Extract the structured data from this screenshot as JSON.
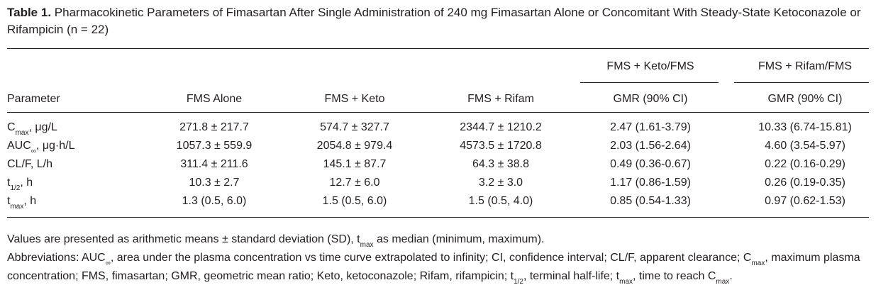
{
  "caption": {
    "label": "Table 1.",
    "text": "Pharmacokinetic Parameters of Fimasartan After Single Administration of 240 mg Fimasartan Alone or Concomitant With Steady-State Ketoconazole or Rifampicin (n = 22)"
  },
  "table": {
    "group_headers": [
      "FMS + Keto/FMS",
      "FMS + Rifam/FMS"
    ],
    "columns": [
      "Parameter",
      "FMS Alone",
      "FMS + Keto",
      "FMS + Rifam",
      "GMR (90% CI)",
      "GMR (90% CI)"
    ],
    "rows": [
      {
        "param_main": "C",
        "param_sub": "max",
        "param_rest": ", μg/L",
        "values": [
          "271.8 ± 217.7",
          "574.7 ± 327.7",
          "2344.7 ± 1210.2",
          "2.47 (1.61-3.79)",
          "10.33 (6.74-15.81)"
        ]
      },
      {
        "param_main": "AUC",
        "param_sub": "∞",
        "param_rest": ", μg·h/L",
        "values": [
          "1057.3 ± 559.9",
          "2054.8 ± 979.4",
          "4573.5 ± 1720.8",
          "2.03 (1.56-2.64)",
          "4.60 (3.54-5.97)"
        ]
      },
      {
        "param_main": "CL/F, L/h",
        "param_sub": "",
        "param_rest": "",
        "values": [
          "311.4 ± 211.6",
          "145.1 ± 87.7",
          "64.3 ± 38.8",
          "0.49 (0.36-0.67)",
          "0.22 (0.16-0.29)"
        ]
      },
      {
        "param_main": "t",
        "param_sub": "1/2",
        "param_rest": ", h",
        "values": [
          "10.3 ± 2.7",
          "12.7 ± 6.0",
          "3.2 ± 3.0",
          "1.17 (0.86-1.59)",
          "0.26 (0.19-0.35)"
        ]
      },
      {
        "param_main": "t",
        "param_sub": "max",
        "param_rest": ", h",
        "values": [
          "1.3 (0.5, 6.0)",
          "1.5 (0.5, 6.0)",
          "1.5 (0.5, 4.0)",
          "0.85 (0.54-1.33)",
          "0.97 (0.62-1.53)"
        ]
      }
    ]
  },
  "notes": {
    "line1_a": "Values are presented as arithmetic means ± standard deviation (SD), t",
    "line1_sub": "max",
    "line1_b": " as median (minimum, maximum).",
    "line2_a": "Abbreviations: AUC",
    "line2_sub1": "∞",
    "line2_b": ", area under the plasma concentration vs time curve extrapolated to infinity; CI, confidence interval; CL/F, apparent clearance; C",
    "line2_sub2": "max",
    "line2_c": ", maximum plasma concentration; FMS, fimasartan; GMR, geometric mean ratio; Keto, ketoconazole; Rifam, rifampicin; t",
    "line2_sub3": "1/2",
    "line2_d": ", terminal half-life; t",
    "line2_sub4": "max",
    "line2_e": ", time to reach C",
    "line2_sub5": "max",
    "line2_f": "."
  }
}
